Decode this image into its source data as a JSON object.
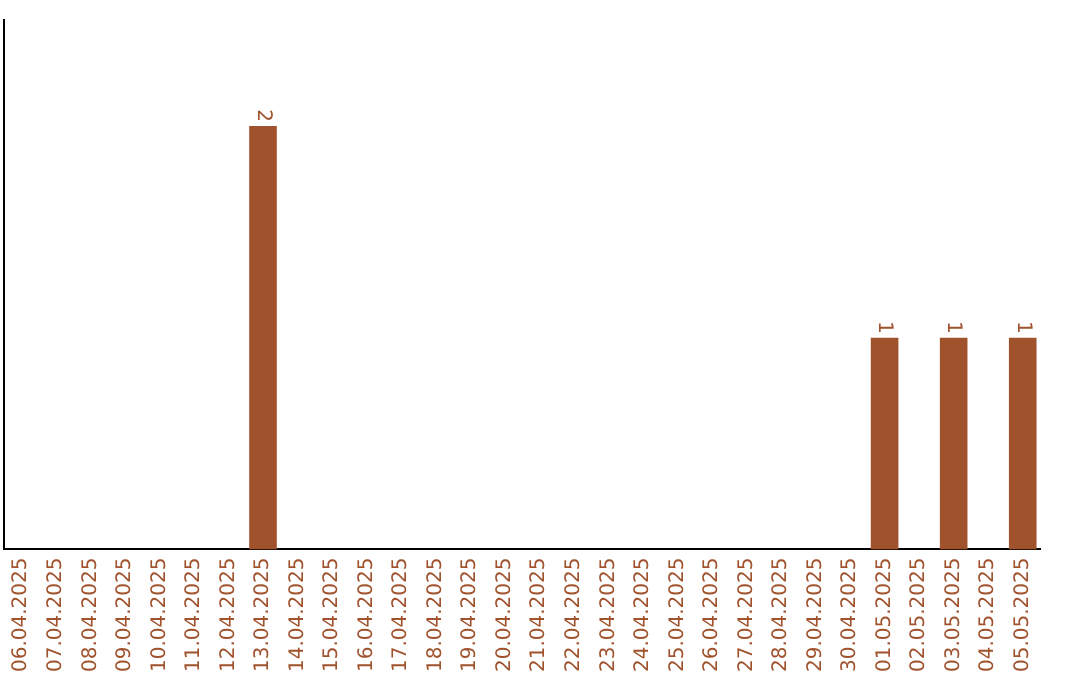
{
  "chart_data": {
    "type": "bar",
    "categories": [
      "06.04.2025",
      "07.04.2025",
      "08.04.2025",
      "09.04.2025",
      "10.04.2025",
      "11.04.2025",
      "12.04.2025",
      "13.04.2025",
      "14.04.2025",
      "15.04.2025",
      "16.04.2025",
      "17.04.2025",
      "18.04.2025",
      "19.04.2025",
      "20.04.2025",
      "21.04.2025",
      "22.04.2025",
      "23.04.2025",
      "24.04.2025",
      "25.04.2025",
      "26.04.2025",
      "27.04.2025",
      "28.04.2025",
      "29.04.2025",
      "30.04.2025",
      "01.05.2025",
      "02.05.2025",
      "03.05.2025",
      "04.05.2025",
      "05.05.2025"
    ],
    "values": [
      0,
      0,
      0,
      0,
      0,
      0,
      0,
      2,
      0,
      0,
      0,
      0,
      0,
      0,
      0,
      0,
      0,
      0,
      0,
      0,
      0,
      0,
      0,
      0,
      0,
      1,
      0,
      1,
      0,
      1
    ],
    "value_labels": [
      null,
      null,
      null,
      null,
      null,
      null,
      null,
      "2",
      null,
      null,
      null,
      null,
      null,
      null,
      null,
      null,
      null,
      null,
      null,
      null,
      null,
      null,
      null,
      null,
      null,
      "1",
      null,
      "1",
      null,
      "1"
    ],
    "color": "#a0522d",
    "tick_labels": "x",
    "grid": false,
    "legend": false
  }
}
